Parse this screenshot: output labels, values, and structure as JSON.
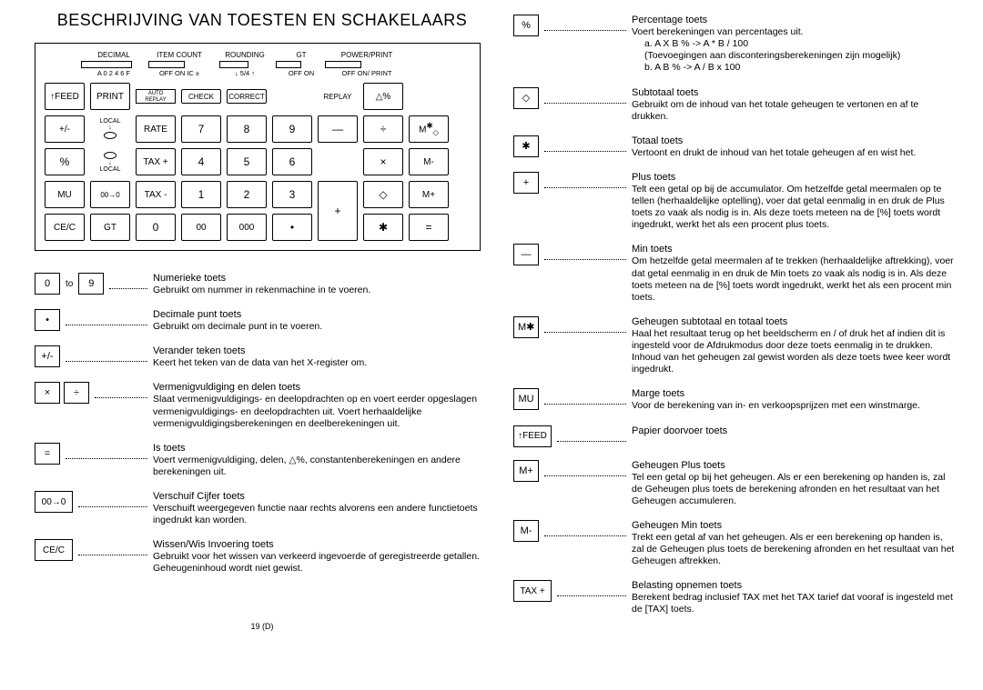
{
  "title": "BESCHRIJVING VAN TOESTEN EN SCHAKELAARS",
  "pageNumber": "19 (D)",
  "topLabels": {
    "l1": "DECIMAL",
    "l2": "ITEM COUNT",
    "l3": "ROUNDING",
    "l4": "GT",
    "l5": "POWER/PRINT"
  },
  "subLabels": {
    "s1": "A  0   2   4   6   F",
    "s2": "OFF  ON  IC ±",
    "s3": "↓  5/4  ↑",
    "s4": "OFF   ON",
    "s5": "OFF  ON/   PRINT",
    "replay": "REPLAY"
  },
  "keys": {
    "feed": "↑FEED",
    "print": "PRINT",
    "auto": "AUTO",
    "replayBtn": "REPLAY",
    "check": "CHECK",
    "correct": "CORRECT",
    "deltaPct": "△%",
    "pm": "+/-",
    "rate": "RATE",
    "k7": "7",
    "k8": "8",
    "k9": "9",
    "minus": "—",
    "divide": "÷",
    "mstar": "M✱",
    "pct": "%",
    "taxp": "TAX +",
    "k4": "4",
    "k5": "5",
    "k6": "6",
    "mult": "×",
    "mminus": "M-",
    "mu": "MU",
    "shift": "00→0",
    "taxm": "TAX -",
    "k1": "1",
    "k2": "2",
    "k3": "3",
    "plus": "+",
    "diamond": "◇",
    "mplus": "M+",
    "cec": "CE/C",
    "gt": "GT",
    "k0": "0",
    "k00": "00",
    "k000": "000",
    "dot": "•",
    "star": "✱",
    "eq": "=",
    "local": "LOCAL"
  },
  "legendLeft": [
    {
      "keys": [
        {
          "t": "0"
        },
        {
          "to": "to"
        },
        {
          "t": "9"
        }
      ],
      "head": "Numerieke toets",
      "body": "Gebruikt om nummer in rekenmachine in te voeren."
    },
    {
      "keys": [
        {
          "t": "•"
        }
      ],
      "head": "Decimale punt toets",
      "body": "Gebruikt om decimale punt in te voeren."
    },
    {
      "keys": [
        {
          "t": "+/-"
        }
      ],
      "head": "Verander teken toets",
      "body": "Keert het teken van de data van het X-register om."
    },
    {
      "keys": [
        {
          "t": "×"
        },
        {
          "t": "÷"
        }
      ],
      "head": "Vermenigvuldiging en delen toets",
      "body": "Slaat vermenigvuldigings- en deelopdrachten op en voert eerder opgeslagen vermenigvuldigings- en deelopdrachten uit. Voert herhaaldelijke vermenigvuldigingsberekeningen en deelberekeningen uit."
    },
    {
      "keys": [
        {
          "t": "="
        }
      ],
      "head": "Is toets",
      "body": "Voert vermenigvuldiging, delen, △%, constantenberekeningen en andere berekeningen uit."
    },
    {
      "keys": [
        {
          "t": "00→0",
          "cls": "wide"
        }
      ],
      "head": "Verschuif Cijfer toets",
      "body": "Verschuift weergegeven functie naar rechts alvorens een andere functietoets ingedrukt kan worden."
    },
    {
      "keys": [
        {
          "t": "CE/C",
          "cls": "wide"
        }
      ],
      "head": "Wissen/Wis Invoering toets",
      "body": "Gebruikt voor het wissen van verkeerd ingevoerde of geregistreerde getallen. Geheugeninhoud wordt niet gewist."
    }
  ],
  "legendRight": [
    {
      "keys": [
        {
          "t": "%"
        }
      ],
      "head": "Percentage toets",
      "body": "Voert berekeningen van percentages uit.",
      "extra": [
        "a.   A X B % -> A * B / 100",
        "      (Toevoegingen aan disconteringsberekeningen zijn mogelijk)",
        "b.   A   B % -> A / B x 100"
      ]
    },
    {
      "keys": [
        {
          "t": "◇"
        }
      ],
      "head": "Subtotaal toets",
      "body": "Gebruikt om de inhoud van het totale geheugen te vertonen en af te drukken."
    },
    {
      "keys": [
        {
          "t": "✱"
        }
      ],
      "head": "Totaal toets",
      "body": "Vertoont en drukt de inhoud van het totale geheugen af en wist het."
    },
    {
      "keys": [
        {
          "t": "+"
        }
      ],
      "head": "Plus toets",
      "body": "Telt een getal op bij de accumulator. Om hetzelfde getal meermalen op te tellen (herhaaldelijke optelling), voer dat getal eenmalig in en druk de Plus toets zo vaak als nodig is in. Als deze toets meteen na de [%] toets wordt ingedrukt, werkt het als een procent plus toets."
    },
    {
      "keys": [
        {
          "t": "—"
        }
      ],
      "head": "Min toets",
      "body": "Om hetzelfde getal meermalen af te trekken (herhaaldelijke aftrekking), voer dat getal eenmalig in en druk de Min toets zo vaak als nodig is in. Als deze toets meteen na de [%] toets wordt ingedrukt, werkt het als een procent min toets."
    },
    {
      "keys": [
        {
          "t": "M✱"
        }
      ],
      "head": "Geheugen subtotaal en totaal toets",
      "body": "Haal het resultaat terug op het beeldscherm en / of druk het af indien dit is ingesteld voor de Afdrukmodus door deze toets eenmalig in te drukken. Inhoud van het geheugen zal gewist worden als deze toets twee keer wordt ingedrukt."
    },
    {
      "keys": [
        {
          "t": "MU"
        }
      ],
      "head": "Marge toets",
      "body": "Voor de berekening van in- en verkoopsprijzen met een winstmarge."
    },
    {
      "keys": [
        {
          "t": "↑FEED",
          "cls": "wide"
        }
      ],
      "head": "Papier doorvoer toets",
      "body": ""
    },
    {
      "keys": [
        {
          "t": "M+"
        }
      ],
      "head": "Geheugen Plus toets",
      "body": "Tel een getal op bij het geheugen. Als er een berekening op handen is, zal de Geheugen plus toets de berekening afronden en het resultaat van het Geheugen accumuleren."
    },
    {
      "keys": [
        {
          "t": "M-"
        }
      ],
      "head": "Geheugen Min toets",
      "body": "Trekt een getal af van het geheugen. Als er een berekening op handen is, zal de Geheugen plus toets de berekening afronden en het resultaat van het Geheugen aftrekken."
    },
    {
      "keys": [
        {
          "t": "TAX +",
          "cls": "wide"
        }
      ],
      "head": "Belasting opnemen toets",
      "body": "Berekent bedrag inclusief TAX met het TAX tarief dat vooraf is ingesteld met de [TAX] toets."
    }
  ]
}
